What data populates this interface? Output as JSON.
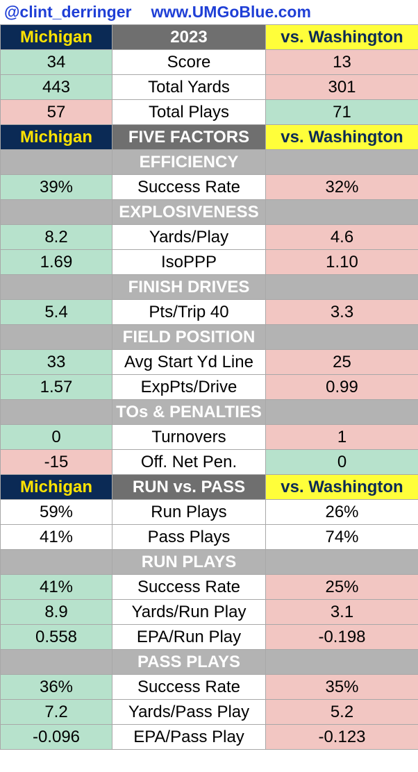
{
  "header": {
    "handle": "@clint_derringer",
    "site": "www.UMGoBlue.com"
  },
  "colors": {
    "navy": "#0b2a55",
    "maize": "#ffe300",
    "yellow": "#fffe3a",
    "good_green": "#b7e2cc",
    "bad_red": "#f2c6c2",
    "section_gray": "#b3b3b3",
    "header_gray": "#6f6f6f"
  },
  "blocks": [
    {
      "header": {
        "left": "Michigan",
        "mid": "2023",
        "right": "vs. Washington"
      },
      "rows": [
        {
          "type": "metric",
          "left": "34",
          "mid": "Score",
          "right": "13",
          "lc": "good",
          "rc": "bad"
        },
        {
          "type": "metric",
          "left": "443",
          "mid": "Total Yards",
          "right": "301",
          "lc": "good",
          "rc": "bad"
        },
        {
          "type": "metric",
          "left": "57",
          "mid": "Total Plays",
          "right": "71",
          "lc": "bad",
          "rc": "good"
        }
      ]
    },
    {
      "header": {
        "left": "Michigan",
        "mid": "FIVE FACTORS",
        "right": "vs. Washington"
      },
      "rows": [
        {
          "type": "section",
          "label": "EFFICIENCY"
        },
        {
          "type": "metric",
          "left": "39%",
          "mid": "Success Rate",
          "right": "32%",
          "lc": "good",
          "rc": "bad"
        },
        {
          "type": "section",
          "label": "EXPLOSIVENESS"
        },
        {
          "type": "metric",
          "left": "8.2",
          "mid": "Yards/Play",
          "right": "4.6",
          "lc": "good",
          "rc": "bad"
        },
        {
          "type": "metric",
          "left": "1.69",
          "mid": "IsoPPP",
          "right": "1.10",
          "lc": "good",
          "rc": "bad"
        },
        {
          "type": "section",
          "label": "FINISH DRIVES"
        },
        {
          "type": "metric",
          "left": "5.4",
          "mid": "Pts/Trip 40",
          "right": "3.3",
          "lc": "good",
          "rc": "bad"
        },
        {
          "type": "section",
          "label": "FIELD POSITION"
        },
        {
          "type": "metric",
          "left": "33",
          "mid": "Avg Start Yd Line",
          "right": "25",
          "lc": "good",
          "rc": "bad"
        },
        {
          "type": "metric",
          "left": "1.57",
          "mid": "ExpPts/Drive",
          "right": "0.99",
          "lc": "good",
          "rc": "bad"
        },
        {
          "type": "section",
          "label": "TOs & PENALTIES"
        },
        {
          "type": "metric",
          "left": "0",
          "mid": "Turnovers",
          "right": "1",
          "lc": "good",
          "rc": "bad"
        },
        {
          "type": "metric",
          "left": "-15",
          "mid": "Off. Net Pen.",
          "right": "0",
          "lc": "bad",
          "rc": "good"
        }
      ]
    },
    {
      "header": {
        "left": "Michigan",
        "mid": "RUN vs. PASS",
        "right": "vs. Washington"
      },
      "rows": [
        {
          "type": "metric",
          "left": "59%",
          "mid": "Run Plays",
          "right": "26%",
          "lc": "plain",
          "rc": "plain"
        },
        {
          "type": "metric",
          "left": "41%",
          "mid": "Pass Plays",
          "right": "74%",
          "lc": "plain",
          "rc": "plain"
        },
        {
          "type": "section",
          "label": "RUN PLAYS"
        },
        {
          "type": "metric",
          "left": "41%",
          "mid": "Success Rate",
          "right": "25%",
          "lc": "good",
          "rc": "bad"
        },
        {
          "type": "metric",
          "left": "8.9",
          "mid": "Yards/Run Play",
          "right": "3.1",
          "lc": "good",
          "rc": "bad"
        },
        {
          "type": "metric",
          "left": "0.558",
          "mid": "EPA/Run Play",
          "right": "-0.198",
          "lc": "good",
          "rc": "bad"
        },
        {
          "type": "section",
          "label": "PASS PLAYS"
        },
        {
          "type": "metric",
          "left": "36%",
          "mid": "Success Rate",
          "right": "35%",
          "lc": "good",
          "rc": "bad"
        },
        {
          "type": "metric",
          "left": "7.2",
          "mid": "Yards/Pass Play",
          "right": "5.2",
          "lc": "good",
          "rc": "bad"
        },
        {
          "type": "metric",
          "left": "-0.096",
          "mid": "EPA/Pass Play",
          "right": "-0.123",
          "lc": "good",
          "rc": "bad"
        }
      ]
    }
  ]
}
